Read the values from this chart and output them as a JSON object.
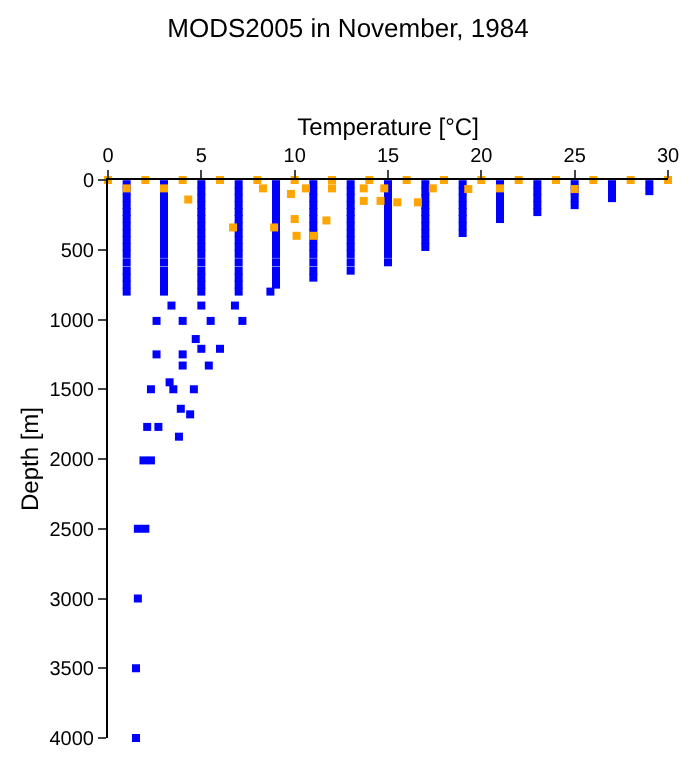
{
  "chart_data": {
    "type": "scatter",
    "title": "MODS2005 in November, 1984",
    "xlabel": "Temperature [°C]",
    "ylabel": "Depth [m]",
    "xlim": [
      0,
      30
    ],
    "xticks": [
      0,
      5,
      10,
      15,
      20,
      25,
      30
    ],
    "ylim": [
      4000,
      0
    ],
    "yticks": [
      0,
      500,
      1000,
      1500,
      2000,
      2500,
      3000,
      3500,
      4000
    ],
    "marker": "square",
    "series": [
      {
        "color": "#0000ff",
        "x": [
          1,
          3,
          5,
          7,
          9,
          11,
          13,
          15,
          17,
          19,
          21,
          23,
          25,
          27,
          29,
          1,
          3,
          5,
          7,
          9,
          11,
          13,
          15,
          17,
          19,
          21,
          23,
          25,
          27,
          29,
          1,
          3,
          5,
          7,
          9,
          11,
          13,
          15,
          17,
          19,
          21,
          23,
          25,
          27,
          1,
          3,
          5,
          7,
          9,
          11,
          13,
          15,
          17,
          19,
          21,
          23,
          25,
          1,
          3,
          5,
          7,
          9,
          11,
          13,
          15,
          17,
          19,
          21,
          23,
          1,
          3,
          5,
          7,
          9,
          11,
          13,
          15,
          17,
          19,
          21,
          1,
          3,
          5,
          7,
          9,
          11,
          13,
          15,
          17,
          19,
          1,
          3,
          5,
          7,
          9,
          11,
          13,
          15,
          17,
          19,
          1,
          3,
          5,
          7,
          9,
          11,
          13,
          15,
          17,
          1,
          3,
          5,
          7,
          9,
          11,
          13,
          15,
          17,
          1,
          3,
          5,
          7,
          9,
          11,
          13,
          15,
          1,
          3,
          5,
          7,
          9,
          11,
          13,
          15,
          1,
          3,
          5,
          7,
          9,
          11,
          13,
          1,
          3,
          5,
          7,
          9,
          11,
          1,
          3,
          5,
          7,
          9,
          1,
          3,
          5,
          7,
          8.7,
          3.4,
          5,
          6.8,
          2.6,
          4,
          5.5,
          7.2,
          4.7,
          5,
          6,
          2.6,
          4,
          4,
          5.4,
          3.3,
          2.3,
          3.5,
          4.6,
          3.9,
          4.4,
          2.1,
          2.7,
          3.8,
          1.9,
          2.3,
          1.6,
          2,
          1.6,
          1.5,
          1.5
        ],
        "values": [
          30,
          30,
          30,
          30,
          30,
          30,
          30,
          30,
          30,
          30,
          30,
          30,
          30,
          30,
          30,
          80,
          80,
          80,
          80,
          80,
          80,
          80,
          80,
          80,
          80,
          80,
          80,
          80,
          80,
          80,
          130,
          130,
          130,
          130,
          130,
          130,
          130,
          130,
          130,
          130,
          130,
          130,
          130,
          130,
          180,
          180,
          180,
          180,
          180,
          180,
          180,
          180,
          180,
          180,
          180,
          180,
          180,
          230,
          230,
          230,
          230,
          230,
          230,
          230,
          230,
          230,
          230,
          230,
          230,
          280,
          280,
          280,
          280,
          280,
          280,
          280,
          280,
          280,
          280,
          280,
          330,
          330,
          330,
          330,
          330,
          330,
          330,
          330,
          330,
          330,
          380,
          380,
          380,
          380,
          380,
          380,
          380,
          380,
          380,
          380,
          430,
          430,
          430,
          430,
          430,
          430,
          430,
          430,
          430,
          480,
          480,
          480,
          480,
          480,
          480,
          480,
          480,
          480,
          530,
          530,
          530,
          530,
          530,
          530,
          530,
          530,
          590,
          590,
          590,
          590,
          590,
          590,
          590,
          590,
          650,
          650,
          650,
          650,
          650,
          650,
          650,
          700,
          700,
          700,
          700,
          700,
          700,
          750,
          750,
          750,
          750,
          750,
          800,
          800,
          800,
          800,
          800,
          900,
          900,
          900,
          1010,
          1010,
          1010,
          1010,
          1140,
          1210,
          1210,
          1250,
          1250,
          1330,
          1330,
          1450,
          1500,
          1500,
          1500,
          1640,
          1680,
          1770,
          1770,
          1840,
          2010,
          2010,
          2500,
          2500,
          3000,
          3500,
          4000
        ]
      },
      {
        "color": "#ffa500",
        "x": [
          0,
          2,
          4,
          6,
          8,
          10,
          12,
          14,
          16,
          18,
          20,
          22,
          24,
          26,
          28,
          30,
          4.3,
          6.7,
          8.9,
          10,
          11.7,
          10.1,
          11,
          13.7,
          14.6,
          15.5,
          16.6,
          8.3,
          9.8,
          10.6,
          12,
          13.7,
          14.8,
          17.4,
          19.3,
          21,
          25,
          1,
          3
        ],
        "values": [
          0,
          0,
          0,
          0,
          0,
          0,
          0,
          0,
          0,
          0,
          0,
          0,
          0,
          0,
          0,
          0,
          140,
          340,
          340,
          280,
          290,
          400,
          400,
          150,
          150,
          160,
          160,
          60,
          100,
          60,
          60,
          60,
          60,
          60,
          65,
          60,
          65,
          60,
          60
        ]
      }
    ]
  }
}
